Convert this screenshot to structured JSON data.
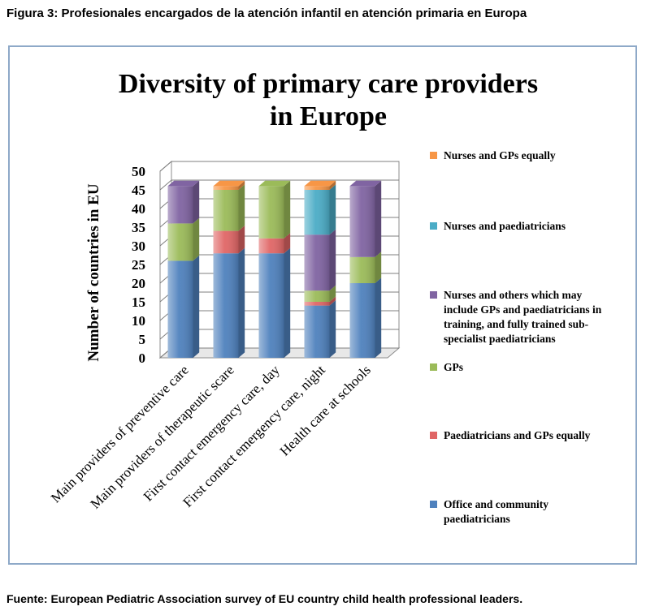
{
  "figure": {
    "caption": "Figura 3: Profesionales encargados de la atención infantil en atención primaria en Europa",
    "source": "Fuente: European Pediatric Association survey of EU country child health professional leaders."
  },
  "chart_data": {
    "type": "bar",
    "stacked": true,
    "three_d": true,
    "title": "Diversity of primary care providers in Europe",
    "title_lines": [
      "Diversity of primary care providers",
      "in Europe"
    ],
    "xlabel": "",
    "ylabel": "Number of countries in EU",
    "ylim": [
      0,
      50
    ],
    "yticks": [
      0,
      5,
      10,
      15,
      20,
      25,
      30,
      35,
      40,
      45,
      50
    ],
    "grid": true,
    "legend_position": "right",
    "categories": [
      "Main providers of preventive care",
      "Main providers of therapeutic scare",
      "First contact emergency care, day",
      "First contact emergency care, night",
      "Health care at schools"
    ],
    "series": [
      {
        "name": "Office and community paediatricians",
        "color": "#4f81bd",
        "values": [
          26,
          28,
          28,
          14,
          20
        ]
      },
      {
        "name": "Paediatricians and GPs equally",
        "color": "#e06666",
        "values": [
          0,
          6,
          4,
          1,
          0
        ]
      },
      {
        "name": "GPs",
        "color": "#9bbb59",
        "values": [
          10,
          11,
          14,
          3,
          7
        ]
      },
      {
        "name": "Nurses and others which may include GPs and paediatricians in training, and fully trained sub-specialist paediatricians",
        "color": "#8064a2",
        "values": [
          10,
          0,
          0,
          15,
          19
        ]
      },
      {
        "name": "Nurses and paediatricians",
        "color": "#4bacc6",
        "values": [
          0,
          0,
          0,
          12,
          0
        ]
      },
      {
        "name": "Nurses and GPs equally",
        "color": "#f79646",
        "values": [
          0,
          1,
          0,
          1,
          0
        ]
      }
    ],
    "legend_order": [
      5,
      4,
      3,
      2,
      1,
      0
    ],
    "legend_lines": [
      [
        "Nurses and GPs equally"
      ],
      [
        "Nurses and paediatricians"
      ],
      [
        "Nurses and others which may",
        "include GPs and paediatricians in",
        "training, and fully trained sub-",
        "specialist paediatricians"
      ],
      [
        "GPs"
      ],
      [
        "Paediatricians and GPs equally"
      ],
      [
        "Office and community",
        "paediatricians"
      ]
    ]
  }
}
